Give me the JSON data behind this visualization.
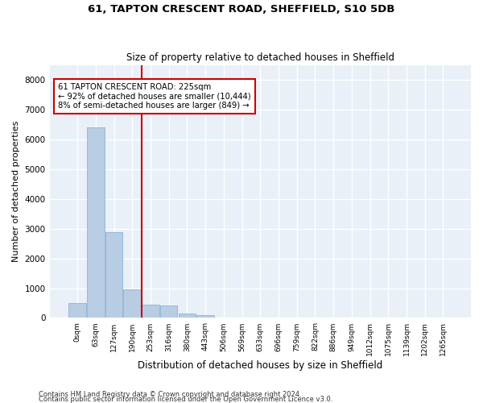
{
  "title1": "61, TAPTON CRESCENT ROAD, SHEFFIELD, S10 5DB",
  "title2": "Size of property relative to detached houses in Sheffield",
  "xlabel": "Distribution of detached houses by size in Sheffield",
  "ylabel": "Number of detached properties",
  "footer1": "Contains HM Land Registry data © Crown copyright and database right 2024.",
  "footer2": "Contains public sector information licensed under the Open Government Licence v3.0.",
  "bar_labels": [
    "0sqm",
    "63sqm",
    "127sqm",
    "190sqm",
    "253sqm",
    "316sqm",
    "380sqm",
    "443sqm",
    "506sqm",
    "569sqm",
    "633sqm",
    "696sqm",
    "759sqm",
    "822sqm",
    "886sqm",
    "949sqm",
    "1012sqm",
    "1075sqm",
    "1139sqm",
    "1202sqm",
    "1265sqm"
  ],
  "bar_values": [
    500,
    6400,
    2900,
    950,
    450,
    430,
    150,
    100,
    0,
    0,
    0,
    0,
    0,
    0,
    0,
    0,
    0,
    0,
    0,
    0,
    0
  ],
  "bar_color": "#b8cce4",
  "bar_edge_color": "#7bafd4",
  "bg_color": "#eaf0f8",
  "grid_color": "#ffffff",
  "property_line_x": 3.5,
  "property_line_color": "#cc0000",
  "annotation_line1": "61 TAPTON CRESCENT ROAD: 225sqm",
  "annotation_line2": "← 92% of detached houses are smaller (10,444)",
  "annotation_line3": "8% of semi-detached houses are larger (849) →",
  "annotation_box_color": "#cc0000",
  "ylim": [
    0,
    8500
  ],
  "yticks": [
    0,
    1000,
    2000,
    3000,
    4000,
    5000,
    6000,
    7000,
    8000
  ]
}
